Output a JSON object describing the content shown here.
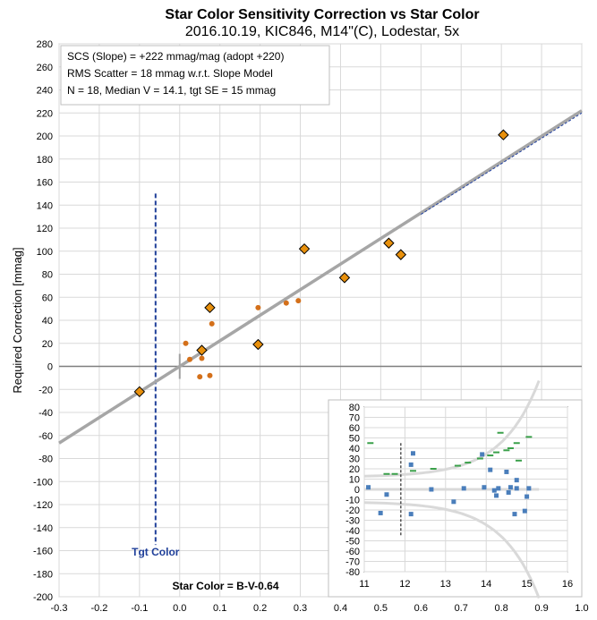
{
  "chart_data": [
    {
      "type": "scatter",
      "title": "Star Color Sensitivity Correction vs Star Color",
      "subtitle": "2016.10.19, KIC846, M14\"(C), Lodestar, 5x",
      "xlabel": "Star Color = B-V-0.64",
      "ylabel": "Required Correction [mmag]",
      "xlim": [
        -0.3,
        1.0
      ],
      "ylim": [
        -200,
        280
      ],
      "x_ticks": [
        "-0.3",
        "-0.2",
        "-0.1",
        "0.0",
        "0.1",
        "0.2",
        "0.3",
        "0.4",
        "0.5",
        "0.6",
        "0.7",
        "0.8",
        "0.9",
        "1.0"
      ],
      "y_ticks": [
        "-200",
        "-180",
        "-160",
        "-140",
        "-120",
        "-100",
        "-80",
        "-60",
        "-40",
        "-20",
        "0",
        "20",
        "40",
        "60",
        "80",
        "100",
        "120",
        "140",
        "160",
        "180",
        "200",
        "220",
        "240",
        "260",
        "280"
      ],
      "grid": true,
      "annotations": [
        "SCS (Slope)  =  +222 mmag/mag (adopt +220)",
        "RMS Scatter = 18 mmag w.r.t. Slope Model",
        "N = 18,  Median V = 14.1, tgt SE = 15 mmag"
      ],
      "target_label": "Tgt Color",
      "target_x": -0.06,
      "fit_line": {
        "slope": 222,
        "intercept": 0
      },
      "adopted_line": {
        "slope": 220,
        "intercept": 0,
        "x_range": [
          0.6,
          1.0
        ]
      },
      "series": [
        {
          "marker": "diamond",
          "color": "#e8900c",
          "points": [
            [
              -0.1,
              -22
            ],
            [
              0.055,
              14
            ],
            [
              0.075,
              51
            ],
            [
              0.195,
              19
            ],
            [
              0.31,
              102
            ],
            [
              0.41,
              77
            ],
            [
              0.52,
              107
            ],
            [
              0.55,
              97
            ],
            [
              0.805,
              201
            ]
          ]
        },
        {
          "marker": "dot",
          "color": "#d4701a",
          "points": [
            [
              0.015,
              20
            ],
            [
              0.025,
              6
            ],
            [
              0.055,
              7
            ],
            [
              0.05,
              -9
            ],
            [
              0.075,
              -8
            ],
            [
              0.08,
              37
            ],
            [
              0.195,
              51
            ],
            [
              0.265,
              55
            ],
            [
              0.295,
              57
            ]
          ]
        }
      ]
    },
    {
      "type": "scatter",
      "xlim": [
        11,
        16
      ],
      "ylim": [
        -80,
        80
      ],
      "x_ticks": [
        "11",
        "12",
        "13",
        "14",
        "15",
        "16"
      ],
      "y_ticks": [
        "-80",
        "-70",
        "-60",
        "-50",
        "-40",
        "-30",
        "-20",
        "-10",
        "0",
        "10",
        "20",
        "30",
        "40",
        "50",
        "60",
        "70",
        "80"
      ],
      "grid": true,
      "series": [
        {
          "marker": "square",
          "color": "#4a7ebb",
          "points": [
            [
              11.1,
              2
            ],
            [
              11.4,
              -23
            ],
            [
              11.55,
              -5
            ],
            [
              12.15,
              24
            ],
            [
              12.15,
              -24
            ],
            [
              12.2,
              35
            ],
            [
              12.65,
              0
            ],
            [
              13.2,
              -12
            ],
            [
              13.45,
              1
            ],
            [
              13.9,
              34
            ],
            [
              13.95,
              2
            ],
            [
              14.1,
              19
            ],
            [
              14.2,
              -1
            ],
            [
              14.25,
              -6
            ],
            [
              14.3,
              1
            ],
            [
              14.5,
              17
            ],
            [
              14.55,
              -3
            ],
            [
              14.6,
              2
            ],
            [
              14.7,
              -24
            ],
            [
              14.75,
              9
            ],
            [
              14.75,
              1
            ],
            [
              14.95,
              -21
            ],
            [
              15.0,
              -7
            ],
            [
              15.05,
              1
            ]
          ]
        },
        {
          "marker": "dash",
          "color": "#3aa04a",
          "points": [
            [
              11.15,
              45
            ],
            [
              11.55,
              15
            ],
            [
              11.75,
              15
            ],
            [
              12.2,
              18
            ],
            [
              12.7,
              20
            ],
            [
              13.3,
              23
            ],
            [
              13.55,
              26
            ],
            [
              13.85,
              30
            ],
            [
              14.1,
              33
            ],
            [
              14.25,
              36
            ],
            [
              14.5,
              38
            ],
            [
              14.6,
              40
            ],
            [
              14.75,
              45
            ],
            [
              14.35,
              55
            ],
            [
              14.8,
              28
            ],
            [
              15.05,
              51
            ]
          ]
        }
      ],
      "target_x": 11.9
    }
  ]
}
